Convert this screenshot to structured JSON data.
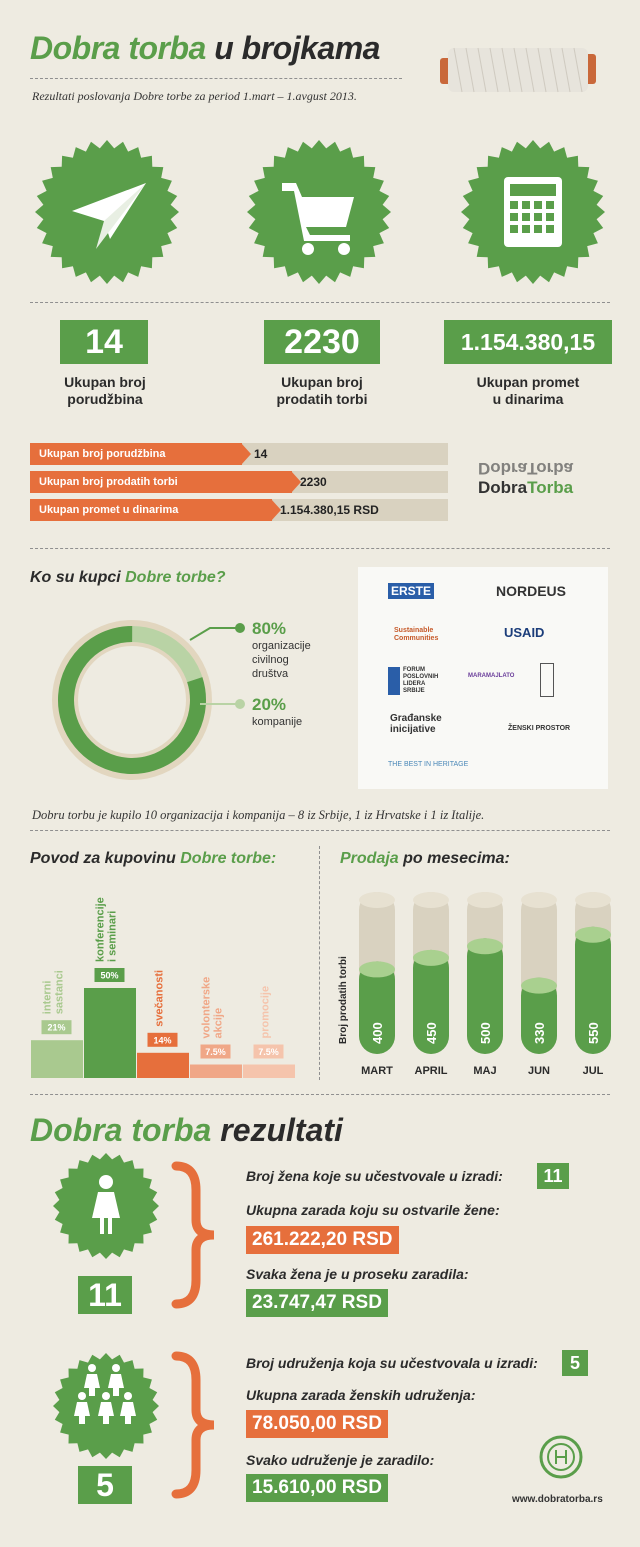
{
  "header": {
    "title_part1": "Dobra torba",
    "title_part2": " u brojkama",
    "subtitle": "Rezultati poslovanja Dobre torbe za period 1.mart – 1.avgust 2013."
  },
  "icons": [
    "paper-plane-icon",
    "shopping-cart-icon",
    "calculator-icon",
    "thread-spool-icon"
  ],
  "stats": [
    {
      "value": "14",
      "label_line1": "Ukupan broj",
      "label_line2": "porudžbina"
    },
    {
      "value": "2230",
      "label_line1": "Ukupan broj",
      "label_line2": "prodatih torbi"
    },
    {
      "value": "1.154.380,15",
      "label_line1": "Ukupan promet",
      "label_line2": "u dinarima"
    }
  ],
  "bars": [
    {
      "label": "Ukupan broj porudžbina",
      "value": "14"
    },
    {
      "label": "Ukupan broj prodatih torbi",
      "value": "2230"
    },
    {
      "label": "Ukupan promet u dinarima",
      "value": "1.154.380,15 RSD"
    }
  ],
  "brand": {
    "logo_top": "DobraTorba",
    "logo_bottom_part1": "Dobra",
    "logo_bottom_part2": "Torba"
  },
  "buyers": {
    "heading_part1": "Ko su kupci ",
    "heading_part2": "Dobre torbe?",
    "legend": [
      {
        "pct": "80%",
        "line1": "organizacije",
        "line2": "civilnog",
        "line3": "društva",
        "color": "#5a9e4a"
      },
      {
        "pct": "20%",
        "line1": "kompanije",
        "line2": "",
        "line3": "",
        "color": "#b9d3a5"
      }
    ],
    "logos": [
      "ERSTE",
      "NORDEUS",
      "Sustainable Communities",
      "USAID",
      "FORUM POSLOVNIH LIDERA SRBIJE",
      "MARAMAJLATO",
      "Građanske inicijative",
      "ŽENSKI PROSTOR",
      "THE BEST IN HERITAGE"
    ],
    "caption": "Dobru torbu je kupilo 10 organizacija i kompanija – 8 iz Srbije, 1 iz Hrvatske i 1 iz Italije."
  },
  "chart_data": [
    {
      "type": "bar",
      "title": "Povod za kupovinu Dobre torbe:",
      "categories": [
        "interni sastanci",
        "konferencije i seminari",
        "svečanosti",
        "volonterske akcije",
        "promocije"
      ],
      "values": [
        21,
        50,
        14,
        7.5,
        7.5
      ],
      "value_labels": [
        "21%",
        "50%",
        "14%",
        "7.5%",
        "7.5%"
      ],
      "colors": [
        "#a9c98f",
        "#5a9e4a",
        "#e66f3c",
        "#f0a787",
        "#f5c4ac"
      ]
    },
    {
      "type": "bar",
      "title": "Prodaja po mesecima:",
      "ylabel": "Broj prodatih torbi",
      "categories": [
        "MART",
        "APRIL",
        "MAJ",
        "JUN",
        "JUL"
      ],
      "values": [
        400,
        450,
        500,
        330,
        550
      ]
    }
  ],
  "chart_titles": {
    "reasons_part1": "Povod za kupovinu ",
    "reasons_part2": "Dobre torbe:",
    "monthly_part1": "Prodaja",
    "monthly_part2": " po mesecima:"
  },
  "results": {
    "heading_part1": "Dobra torba",
    "heading_part2": " rezultati",
    "women": {
      "count": "11",
      "q1": "Broj žena koje su učestvovale u izradi:",
      "q1_value": "11",
      "q2": "Ukupna zarada koju su ostvarile žene:",
      "q2_value": "261.222,20 RSD",
      "q3": "Svaka žena je u proseku zaradila:",
      "q3_value": "23.747,47 RSD"
    },
    "associations": {
      "count": "5",
      "q1": "Broj udruženja koja su učestvovala u izradi:",
      "q1_value": "5",
      "q2": "Ukupna zarada ženskih udruženja:",
      "q2_value": "78.050,00 RSD",
      "q3": "Svako udruženje je zaradilo:",
      "q3_value": "15.610,00 RSD"
    },
    "url": "www.dobratorba.rs"
  }
}
